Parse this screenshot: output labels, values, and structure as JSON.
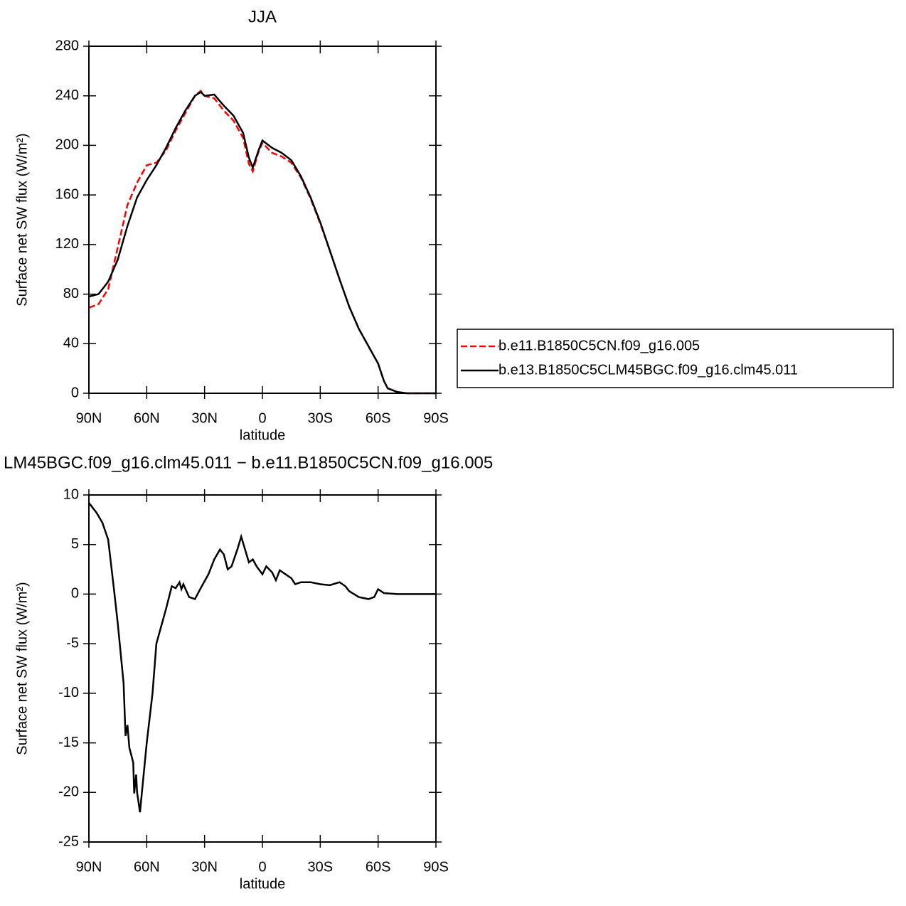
{
  "chart_data": [
    {
      "type": "line",
      "title": "JJA",
      "xlabel": "latitude",
      "ylabel": "Surface net SW flux (W/m²)",
      "x": [
        90,
        85,
        80,
        75,
        70,
        65,
        60,
        55,
        50,
        45,
        40,
        35,
        32,
        30,
        25,
        20,
        15,
        10,
        7,
        5,
        2,
        0,
        -5,
        -10,
        -15,
        -20,
        -25,
        -30,
        -35,
        -40,
        -45,
        -50,
        -55,
        -60,
        -63,
        -65,
        -70,
        -75,
        -80,
        -85,
        -90
      ],
      "xlim": [
        90,
        -90
      ],
      "xticks": [
        {
          "value": 90,
          "label": "90N"
        },
        {
          "value": 60,
          "label": "60N"
        },
        {
          "value": 30,
          "label": "30N"
        },
        0,
        {
          "value": -30,
          "label": "30S"
        },
        {
          "value": -60,
          "label": "60S"
        },
        {
          "value": -90,
          "label": "90S"
        }
      ],
      "ylim": [
        0,
        280
      ],
      "yticks": [
        0,
        40,
        80,
        120,
        160,
        200,
        240,
        280
      ],
      "legend": true,
      "series": [
        {
          "name": "b.e11.B1850C5CN.f09_g16.005",
          "color": "#ff0000",
          "dash": "dashed",
          "values": [
            69,
            72,
            84,
            118,
            152,
            170,
            184,
            186,
            196,
            212,
            226,
            240,
            244,
            240,
            238,
            228,
            220,
            206,
            185,
            179,
            195,
            202,
            194,
            191,
            186,
            174,
            157,
            137,
            115,
            92,
            70,
            52,
            38,
            24,
            10,
            4,
            1,
            0,
            0,
            0,
            0
          ]
        },
        {
          "name": "b.e13.B1850C5CLM45BGC.f09_g16.clm45.011",
          "color": "#000000",
          "dash": "solid",
          "values": [
            78,
            80,
            90,
            108,
            135,
            158,
            172,
            184,
            198,
            214,
            228,
            240,
            243,
            240,
            241,
            232,
            224,
            210,
            190,
            182,
            196,
            204,
            198,
            194,
            188,
            175,
            158,
            138,
            115,
            92,
            70,
            52,
            38,
            24,
            10,
            4,
            1,
            0,
            0,
            0,
            0
          ]
        }
      ]
    },
    {
      "type": "line",
      "title": "LM45BGC.f09_g16.clm45.011 − b.e11.B1850C5CN.f09_g16.005",
      "xlabel": "latitude",
      "ylabel": "Surface net SW flux (W/m²)",
      "x": [
        90,
        86,
        83,
        80,
        77,
        75,
        72,
        71,
        70,
        69,
        67,
        66.5,
        65.5,
        65,
        63.5,
        60,
        57,
        55,
        50,
        47,
        45,
        43,
        42,
        41,
        38,
        35,
        32,
        28,
        25,
        22,
        20,
        18,
        16,
        13,
        11,
        9,
        7,
        5,
        3,
        0,
        -2,
        -5,
        -7,
        -9,
        -12,
        -15,
        -17,
        -20,
        -25,
        -30,
        -35,
        -40,
        -43,
        -45,
        -50,
        -55,
        -58,
        -60,
        -63,
        -70,
        -80,
        -90
      ],
      "xlim": [
        90,
        -90
      ],
      "xticks": [
        {
          "value": 90,
          "label": "90N"
        },
        {
          "value": 60,
          "label": "60N"
        },
        {
          "value": 30,
          "label": "30N"
        },
        0,
        {
          "value": -30,
          "label": "30S"
        },
        {
          "value": -60,
          "label": "60S"
        },
        {
          "value": -90,
          "label": "90S"
        }
      ],
      "ylim": [
        -25,
        10
      ],
      "yticks": [
        -25,
        -20,
        -15,
        -10,
        -5,
        0,
        5,
        10
      ],
      "legend": false,
      "series": [
        {
          "color": "#000000",
          "dash": "solid",
          "values": [
            9.2,
            8.2,
            7.2,
            5.5,
            0.5,
            -3,
            -9,
            -14.3,
            -13.2,
            -15.5,
            -17,
            -20.1,
            -18.2,
            -20,
            -22,
            -15,
            -10,
            -5,
            -1.5,
            0.8,
            0.6,
            1.2,
            0.5,
            1.0,
            -0.3,
            -0.5,
            0.6,
            2.0,
            3.5,
            4.5,
            4.0,
            2.5,
            2.8,
            4.5,
            5.8,
            4.5,
            3.2,
            3.5,
            2.8,
            2.0,
            2.8,
            2.2,
            1.4,
            2.4,
            2.0,
            1.6,
            1.0,
            1.2,
            1.2,
            1.0,
            0.9,
            1.2,
            0.8,
            0.3,
            -0.3,
            -0.5,
            -0.3,
            0.5,
            0.1,
            0,
            0,
            0
          ]
        }
      ]
    }
  ]
}
